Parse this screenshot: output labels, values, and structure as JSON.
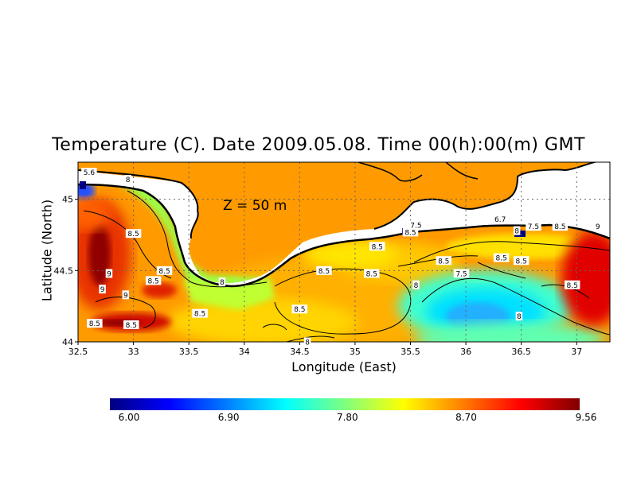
{
  "title": "Temperature (C). Date 2009.05.08. Time 00(h):00(m) GMT",
  "annotation": "Z  =  50  m",
  "xlabel": "Longitude (East)",
  "ylabel": "Latitude (North)",
  "map": {
    "lon_range": [
      32.5,
      37.3
    ],
    "lat_range": [
      44.0,
      45.26
    ],
    "x_ticks": [
      "32.5",
      "33",
      "33.5",
      "34",
      "34.5",
      "35",
      "35.5",
      "36",
      "36.5",
      "37"
    ],
    "y_ticks": [
      "44",
      "44.5",
      "45"
    ],
    "grid": true,
    "land_color": "#ffffff"
  },
  "contour_labels": [
    {
      "text": "5.6",
      "lon": 32.6,
      "lat": 45.19
    },
    {
      "text": "8",
      "lon": 32.95,
      "lat": 45.14
    },
    {
      "text": "8.5",
      "lon": 33.0,
      "lat": 44.76
    },
    {
      "text": "8.5",
      "lon": 33.28,
      "lat": 44.5
    },
    {
      "text": "9",
      "lon": 32.78,
      "lat": 44.48
    },
    {
      "text": "8.5",
      "lon": 33.18,
      "lat": 44.43
    },
    {
      "text": "9",
      "lon": 32.72,
      "lat": 44.37
    },
    {
      "text": "9",
      "lon": 32.93,
      "lat": 44.33
    },
    {
      "text": "8.5",
      "lon": 32.65,
      "lat": 44.13
    },
    {
      "text": "8.5",
      "lon": 32.98,
      "lat": 44.12
    },
    {
      "text": "8.5",
      "lon": 33.6,
      "lat": 44.2
    },
    {
      "text": "8",
      "lon": 33.8,
      "lat": 44.42
    },
    {
      "text": "8.5",
      "lon": 34.5,
      "lat": 44.23
    },
    {
      "text": "8",
      "lon": 34.57,
      "lat": 44.0
    },
    {
      "text": "8.5",
      "lon": 34.72,
      "lat": 44.5
    },
    {
      "text": "8.5",
      "lon": 35.15,
      "lat": 44.48
    },
    {
      "text": "8.5",
      "lon": 35.2,
      "lat": 44.67
    },
    {
      "text": "8",
      "lon": 35.55,
      "lat": 44.4
    },
    {
      "text": "7.5",
      "lon": 35.96,
      "lat": 44.48
    },
    {
      "text": "8",
      "lon": 36.48,
      "lat": 44.18
    },
    {
      "text": "8.5",
      "lon": 35.5,
      "lat": 44.77
    },
    {
      "text": "7.5",
      "lon": 35.55,
      "lat": 44.82
    },
    {
      "text": "8.5",
      "lon": 35.8,
      "lat": 44.57
    },
    {
      "text": "6.7",
      "lon": 36.31,
      "lat": 44.86
    },
    {
      "text": "8",
      "lon": 36.46,
      "lat": 44.78
    },
    {
      "text": "7.5",
      "lon": 36.61,
      "lat": 44.81
    },
    {
      "text": "8.5",
      "lon": 36.85,
      "lat": 44.81
    },
    {
      "text": "9",
      "lon": 37.19,
      "lat": 44.81
    },
    {
      "text": "8.5",
      "lon": 36.32,
      "lat": 44.59
    },
    {
      "text": "8.5",
      "lon": 36.5,
      "lat": 44.57
    },
    {
      "text": "8.5",
      "lon": 36.96,
      "lat": 44.4
    }
  ],
  "colorbar": {
    "min": 6.0,
    "max": 9.56,
    "labels": [
      "6.00",
      "6.90",
      "7.80",
      "8.70",
      "9.56"
    ],
    "colors": [
      "#00007f",
      "#0000ff",
      "#007fff",
      "#00ffff",
      "#7fff7f",
      "#ffff00",
      "#ff7f00",
      "#ff0000",
      "#7f0000"
    ]
  }
}
